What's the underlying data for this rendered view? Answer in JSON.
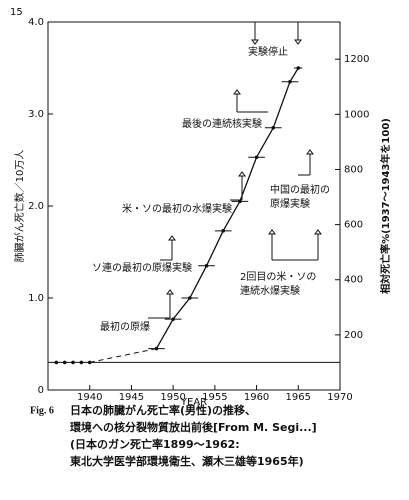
{
  "page_number": "15",
  "chart_data": {
    "type": "scatter",
    "xlabel": "YEAR",
    "ylabel": "肺臓がん死亡数／10万人",
    "y2label": "相対死亡率%(1937～1943年を100)",
    "xlim": [
      1935,
      1970
    ],
    "xticks": [
      1940,
      1945,
      1950,
      1955,
      1960,
      1965,
      1970
    ],
    "ylim": [
      0,
      4
    ],
    "yticks": [
      0,
      {
        "value": 1,
        "label": "1.0"
      },
      {
        "value": 2,
        "label": "2.0"
      },
      {
        "value": 3,
        "label": "3.0"
      },
      {
        "value": 4,
        "label": "4.0"
      }
    ],
    "y2lim": [
      0,
      1335
    ],
    "y2ticks": [
      200,
      400,
      600,
      800,
      1000,
      1200
    ],
    "hline": 0.3,
    "color": "#111111",
    "series": [
      {
        "x": [
          1936,
          1937,
          1938,
          1939,
          1940
        ],
        "values": [
          0.3,
          0.3,
          0.3,
          0.3,
          0.3
        ]
      },
      {
        "x": [
          1948,
          1950,
          1952,
          1954,
          1956,
          1958,
          1960,
          1962,
          1964,
          1965
        ],
        "values": [
          0.45,
          0.77,
          1.0,
          1.35,
          1.73,
          2.05,
          2.53,
          2.85,
          3.35,
          3.5
        ],
        "xerr": [
          1,
          1,
          1,
          1,
          1,
          1,
          1,
          1,
          1,
          0.5
        ]
      }
    ],
    "annotations": [
      [
        "最初の原爆"
      ],
      [
        "ソ連の最初の原爆実験"
      ],
      [
        "米・ソの最初の水爆実験"
      ],
      [
        "最後の連続核実験"
      ],
      [
        "中国の最初の",
        "原爆実験"
      ],
      [
        "2回目の米・ソの",
        "連続水爆実験"
      ],
      [
        "実験停止"
      ]
    ]
  },
  "caption": {
    "label": "Fig. 6",
    "lines": [
      "日本の肺臓がん死亡率(男性)の推移、",
      "環境への核分裂物質放出前後[From M. Segi...]",
      "(日本のガン死亡率1899～1962:",
      "東北大学医学部環境衛生、瀬木三雄等1965年)"
    ]
  }
}
